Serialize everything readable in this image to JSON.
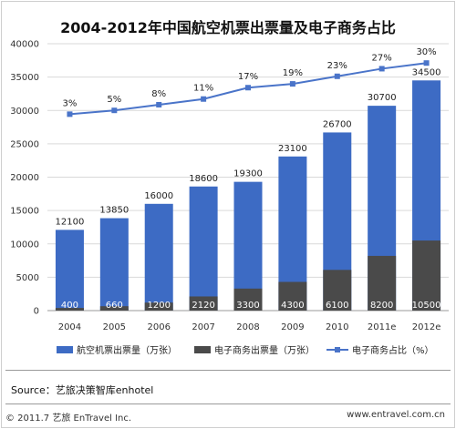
{
  "chart_data": {
    "type": "bar",
    "title": "2004-2012年中国航空机票出票量及电子商务占比",
    "categories": [
      "2004",
      "2005",
      "2006",
      "2007",
      "2008",
      "2009",
      "2010",
      "2011e",
      "2012e"
    ],
    "y_axis": {
      "min": 0,
      "max": 40000,
      "step": 5000,
      "ticks": [
        "0",
        "5000",
        "10000",
        "15000",
        "20000",
        "25000",
        "30000",
        "35000",
        "40000"
      ]
    },
    "series": [
      {
        "name": "航空机票出票量（万张）",
        "kind": "bar",
        "color": "#3d6bc4",
        "values": [
          12100,
          13850,
          16000,
          18600,
          19300,
          23100,
          26700,
          30700,
          34500
        ]
      },
      {
        "name": "电子商务出票量（万张）",
        "kind": "bar-overlay",
        "color": "#4a4a4a",
        "values": [
          400,
          660,
          1200,
          2120,
          3300,
          4300,
          6100,
          8200,
          10500
        ]
      },
      {
        "name": "电子商务占比（%）",
        "kind": "line",
        "color": "#4a74c9",
        "values": [
          3,
          5,
          8,
          11,
          17,
          19,
          23,
          27,
          30
        ],
        "labels": [
          "3%",
          "5%",
          "8%",
          "11%",
          "17%",
          "19%",
          "23%",
          "27%",
          "30%"
        ]
      }
    ],
    "legend_position": "bottom",
    "grid": true
  },
  "footer": {
    "source": "Source：艺旅决策智库enhotel",
    "copyright": "© 2011.7 艺旅 EnTravel Inc.",
    "site": "www.entravel.com.cn"
  }
}
